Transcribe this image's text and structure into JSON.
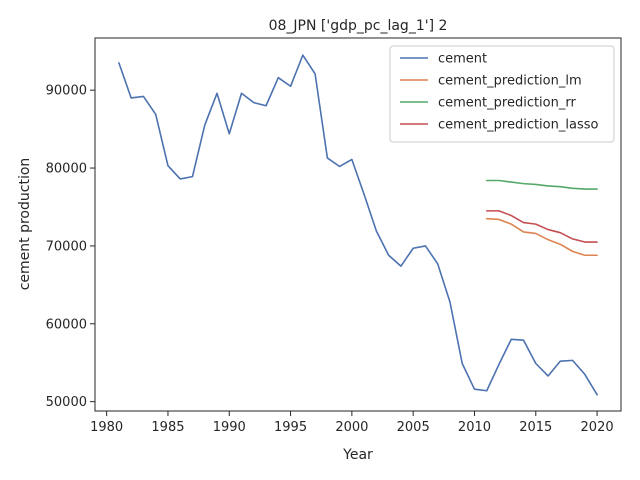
{
  "chart_data": {
    "type": "line",
    "title": "08_JPN ['gdp_pc_lag_1'] 2",
    "xlabel": "Year",
    "ylabel": "cement production",
    "xlim": [
      1979.05,
      2021.95
    ],
    "ylim": [
      48800,
      96700
    ],
    "xticks": [
      1980,
      1985,
      1990,
      1995,
      2000,
      2005,
      2010,
      2015,
      2020
    ],
    "yticks": [
      50000,
      60000,
      70000,
      80000,
      90000
    ],
    "grid": false,
    "legend_position": "top-right",
    "series": [
      {
        "name": "cement",
        "color": "#4c72b0",
        "x": [
          1981,
          1982,
          1983,
          1984,
          1985,
          1986,
          1987,
          1988,
          1989,
          1990,
          1991,
          1992,
          1993,
          1994,
          1995,
          1996,
          1997,
          1998,
          1999,
          2000,
          2001,
          2002,
          2003,
          2004,
          2005,
          2006,
          2007,
          2008,
          2009,
          2010,
          2011,
          2012,
          2013,
          2014,
          2015,
          2016,
          2017,
          2018,
          2019,
          2020
        ],
        "y": [
          93500,
          89000,
          89200,
          86900,
          80300,
          78600,
          78900,
          85500,
          89600,
          84400,
          89600,
          88400,
          88000,
          91600,
          90500,
          94500,
          92100,
          81300,
          80200,
          81100,
          76600,
          71900,
          68800,
          67400,
          69700,
          70000,
          67700,
          62800,
          54900,
          51600,
          51400,
          54800,
          58000,
          57900,
          54900,
          53300,
          55200,
          55300,
          53500,
          50900
        ]
      },
      {
        "name": "cement_prediction_lm",
        "color": "#dd8452",
        "x": [
          2011,
          2012,
          2013,
          2014,
          2015,
          2016,
          2017,
          2018,
          2019,
          2020
        ],
        "y": [
          73500,
          73400,
          72800,
          71800,
          71600,
          70800,
          70200,
          69300,
          68800,
          68800
        ]
      },
      {
        "name": "cement_prediction_rr",
        "color": "#55a868",
        "x": [
          2011,
          2012,
          2013,
          2014,
          2015,
          2016,
          2017,
          2018,
          2019,
          2020
        ],
        "y": [
          78400,
          78400,
          78200,
          78000,
          77900,
          77700,
          77600,
          77400,
          77300,
          77300
        ]
      },
      {
        "name": "cement_prediction_lasso",
        "color": "#c44e52",
        "x": [
          2011,
          2012,
          2013,
          2014,
          2015,
          2016,
          2017,
          2018,
          2019,
          2020
        ],
        "y": [
          74500,
          74500,
          73900,
          73000,
          72800,
          72100,
          71700,
          70900,
          70500,
          70500
        ]
      }
    ]
  }
}
